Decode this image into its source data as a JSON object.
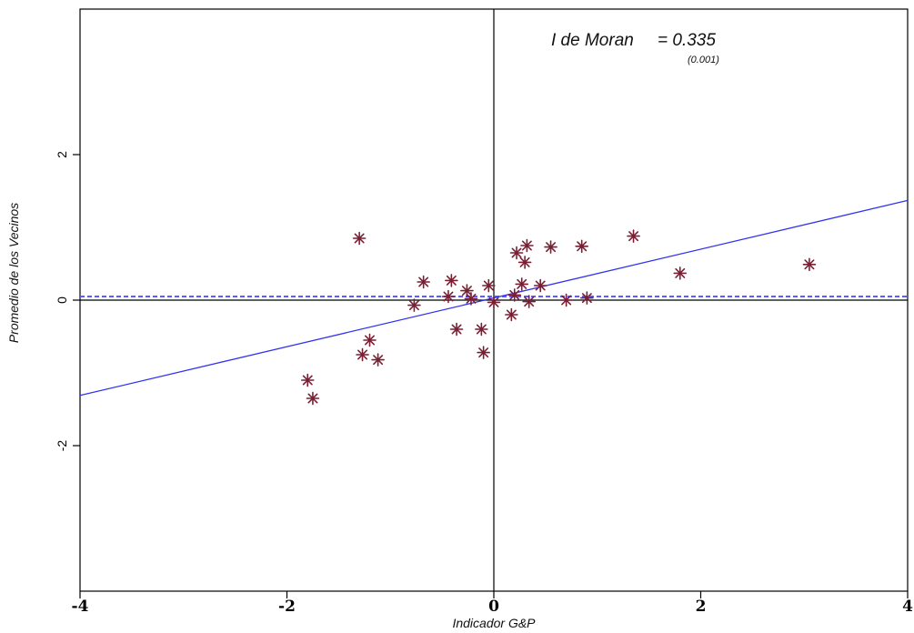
{
  "chart_data": {
    "type": "scatter",
    "xlabel": "Indicador G&P",
    "ylabel": "Promedio de los Vecinos",
    "xlim": [
      -4,
      4
    ],
    "ylim": [
      -4,
      4
    ],
    "x_ticks": [
      -4,
      -2,
      0,
      2,
      4
    ],
    "x_tick_labels": [
      "-4",
      "-2",
      "0",
      "2",
      "4"
    ],
    "y_ticks": [
      -2,
      0,
      2
    ],
    "y_tick_labels": [
      "-2",
      "0",
      "2"
    ],
    "annotation": {
      "label": "I de Moran",
      "value": "= 0.335",
      "p_value": "(0.001)"
    },
    "regression_line": {
      "intercept": 0.03,
      "slope": 0.335,
      "color": "#3333ee"
    },
    "mean_line": {
      "y": 0.05,
      "color": "#5b5bff",
      "style": "dashed"
    },
    "marker_color": "#7a1f33",
    "points": [
      {
        "x": -1.8,
        "y": -1.1
      },
      {
        "x": -1.75,
        "y": -1.35
      },
      {
        "x": -1.3,
        "y": 0.85
      },
      {
        "x": -1.27,
        "y": -0.75
      },
      {
        "x": -1.2,
        "y": -0.55
      },
      {
        "x": -1.12,
        "y": -0.82
      },
      {
        "x": -0.77,
        "y": -0.07
      },
      {
        "x": -0.68,
        "y": 0.25
      },
      {
        "x": -0.44,
        "y": 0.05
      },
      {
        "x": -0.41,
        "y": 0.27
      },
      {
        "x": -0.36,
        "y": -0.4
      },
      {
        "x": -0.26,
        "y": 0.13
      },
      {
        "x": -0.22,
        "y": 0.02
      },
      {
        "x": -0.12,
        "y": -0.4
      },
      {
        "x": -0.1,
        "y": -0.72
      },
      {
        "x": -0.05,
        "y": 0.2
      },
      {
        "x": 0.0,
        "y": -0.03
      },
      {
        "x": 0.17,
        "y": -0.2
      },
      {
        "x": 0.2,
        "y": 0.07
      },
      {
        "x": 0.22,
        "y": 0.65
      },
      {
        "x": 0.27,
        "y": 0.22
      },
      {
        "x": 0.3,
        "y": 0.52
      },
      {
        "x": 0.32,
        "y": 0.75
      },
      {
        "x": 0.34,
        "y": -0.02
      },
      {
        "x": 0.45,
        "y": 0.2
      },
      {
        "x": 0.55,
        "y": 0.73
      },
      {
        "x": 0.7,
        "y": 0.0
      },
      {
        "x": 0.85,
        "y": 0.74
      },
      {
        "x": 0.9,
        "y": 0.03
      },
      {
        "x": 1.35,
        "y": 0.88
      },
      {
        "x": 1.8,
        "y": 0.37
      },
      {
        "x": 3.05,
        "y": 0.49
      }
    ]
  }
}
